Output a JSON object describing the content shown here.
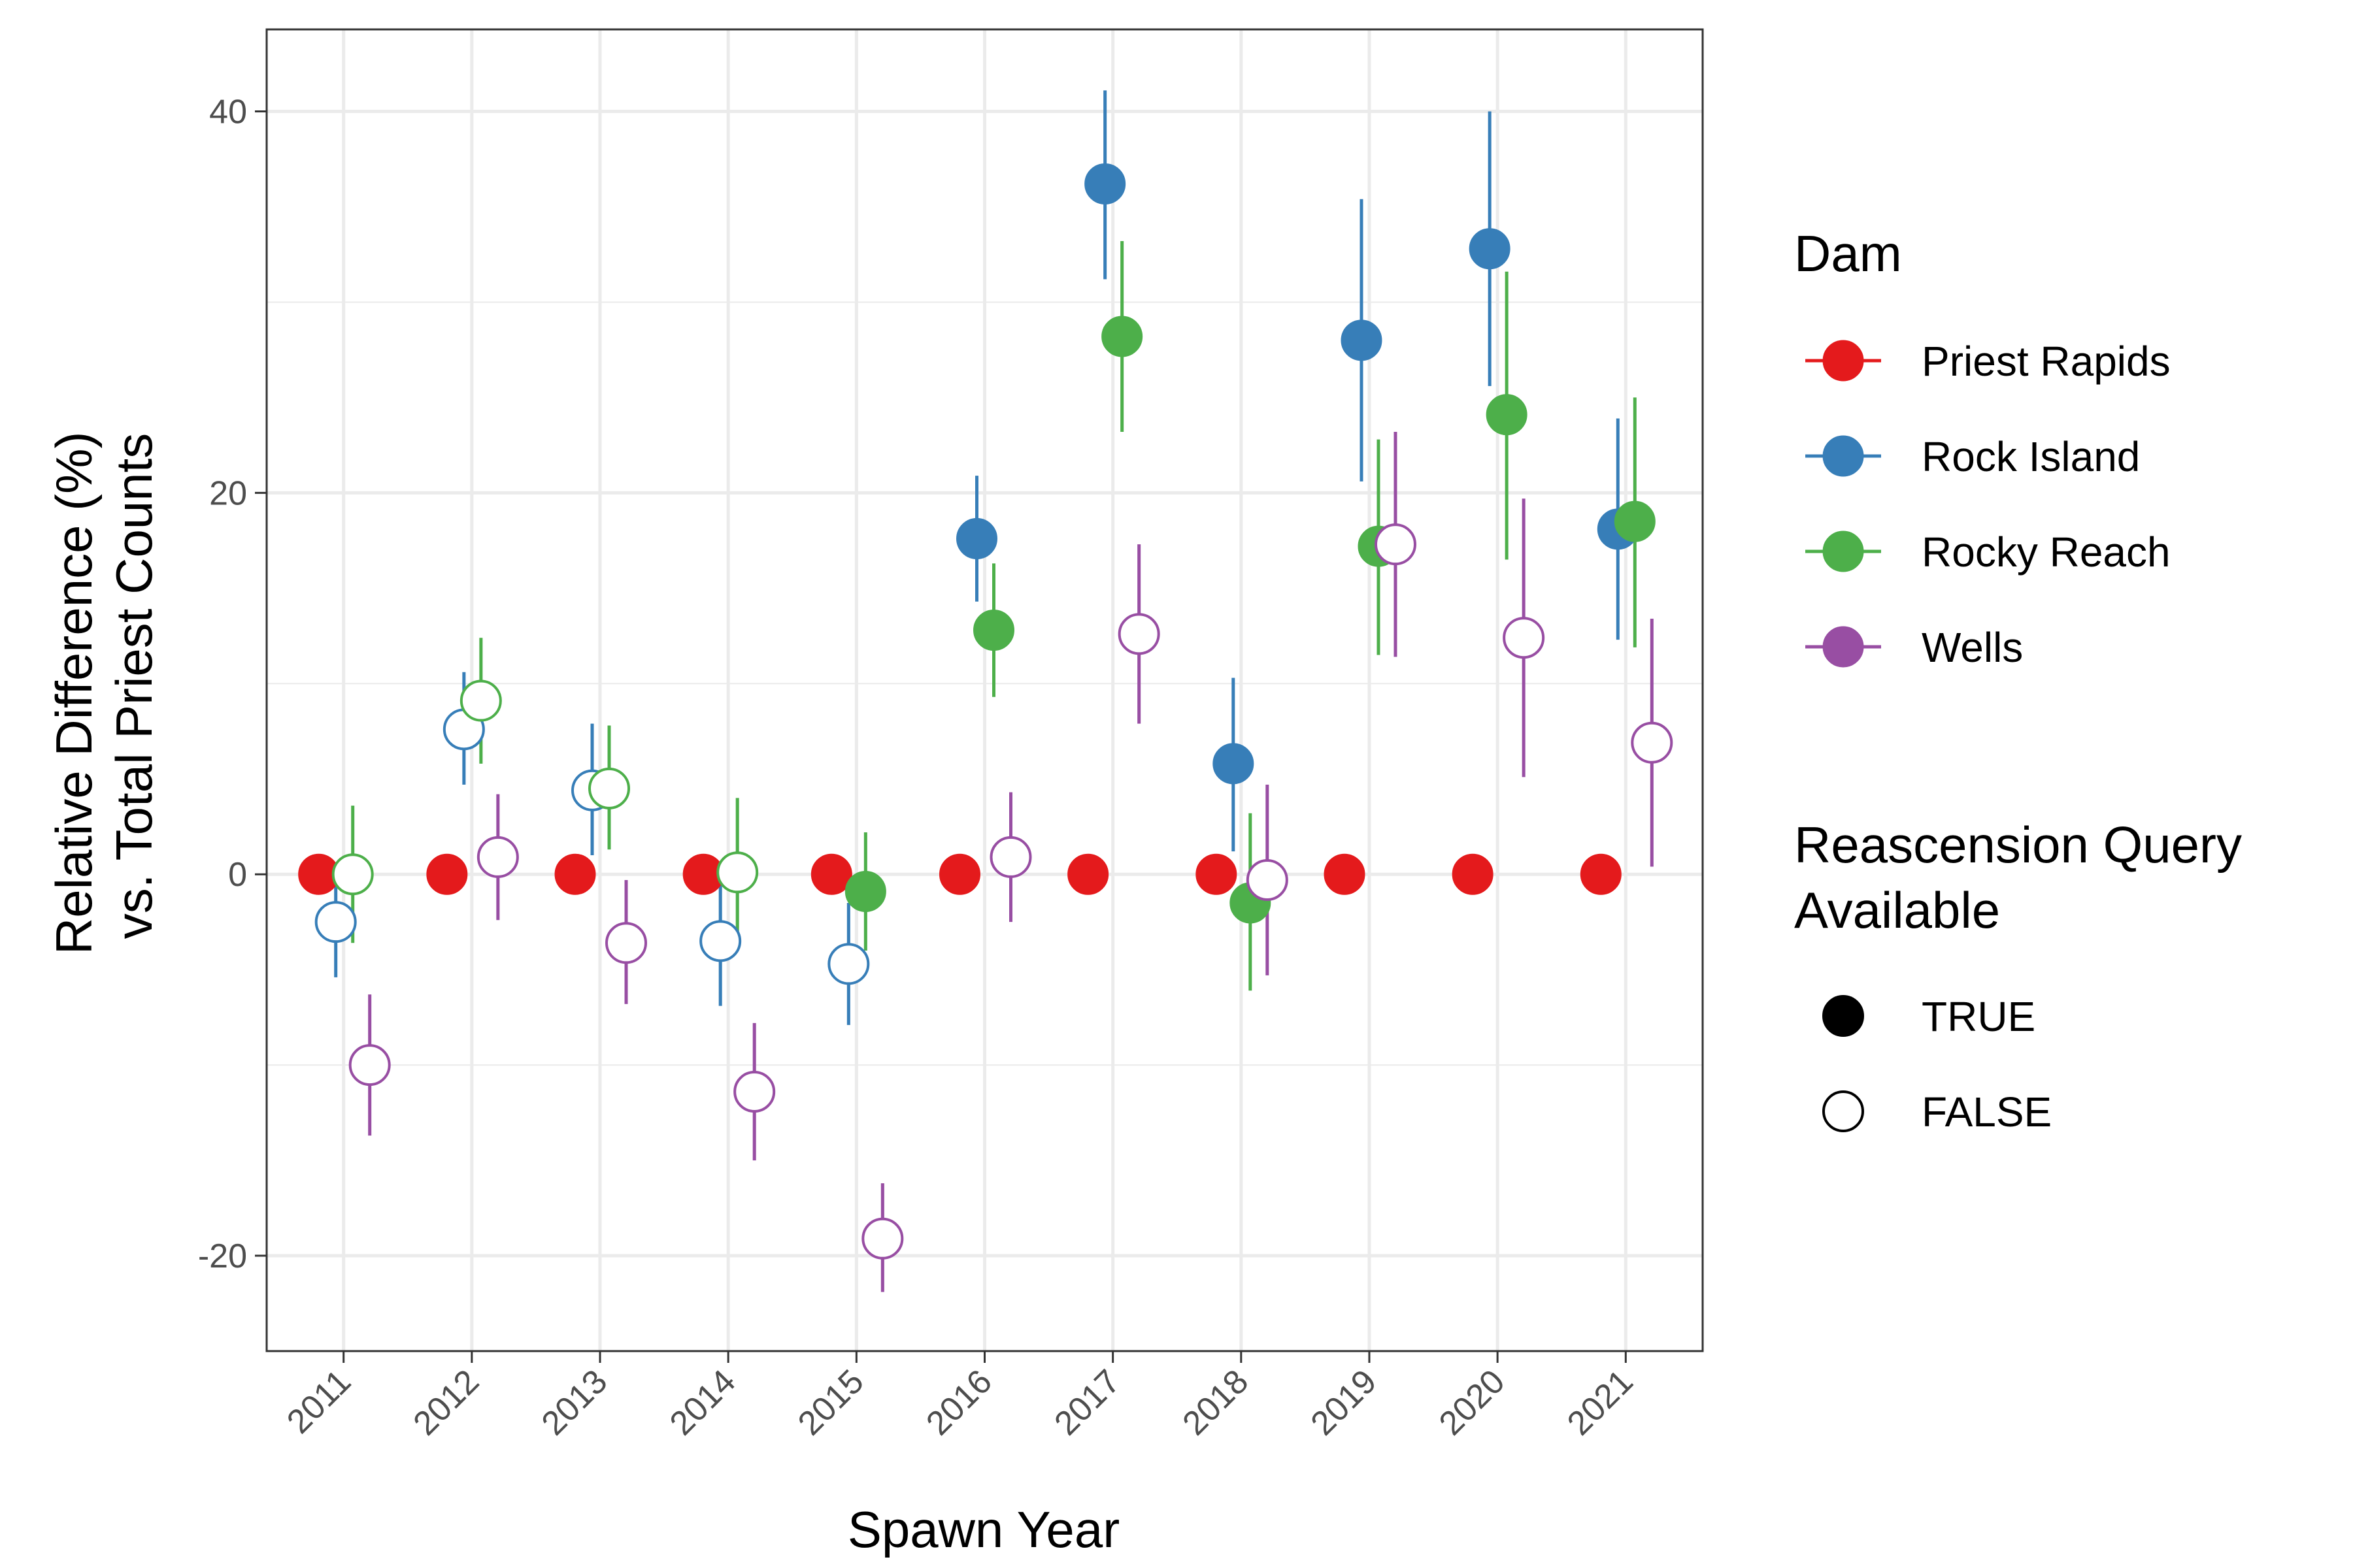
{
  "chart_data": {
    "type": "scatter",
    "xlabel": "Spawn Year",
    "ylabel_line1": "Relative Difference (%)",
    "ylabel_line2": "vs. Total Priest Counts",
    "x": [
      "2011",
      "2012",
      "2013",
      "2014",
      "2015",
      "2016",
      "2017",
      "2018",
      "2019",
      "2020",
      "2021"
    ],
    "yticks": [
      -20,
      0,
      20,
      40
    ],
    "yticks_text": [
      "-20",
      "0",
      "20",
      "40"
    ],
    "ylim": [
      -25,
      44.3
    ],
    "grid": true,
    "legend_position": "right",
    "legend_dam_title": "Dam",
    "legend_query_title_line1": "Reascension Query",
    "legend_query_title_line2": "Available",
    "query_levels": [
      {
        "label": "TRUE",
        "filled": true
      },
      {
        "label": "FALSE",
        "filled": false
      }
    ],
    "series": [
      {
        "name": "Priest Rapids",
        "color": "#E41A1C",
        "points": [
          {
            "x": "2011",
            "y": 0,
            "lo": 0,
            "hi": 0,
            "query": true
          },
          {
            "x": "2012",
            "y": 0,
            "lo": 0,
            "hi": 0,
            "query": true
          },
          {
            "x": "2013",
            "y": 0,
            "lo": 0,
            "hi": 0,
            "query": true
          },
          {
            "x": "2014",
            "y": 0,
            "lo": 0,
            "hi": 0,
            "query": true
          },
          {
            "x": "2015",
            "y": 0,
            "lo": 0,
            "hi": 0,
            "query": true
          },
          {
            "x": "2016",
            "y": 0,
            "lo": 0,
            "hi": 0,
            "query": true
          },
          {
            "x": "2017",
            "y": 0,
            "lo": 0,
            "hi": 0,
            "query": true
          },
          {
            "x": "2018",
            "y": 0,
            "lo": 0,
            "hi": 0,
            "query": true
          },
          {
            "x": "2019",
            "y": 0,
            "lo": 0,
            "hi": 0,
            "query": true
          },
          {
            "x": "2020",
            "y": 0,
            "lo": 0,
            "hi": 0,
            "query": true
          },
          {
            "x": "2021",
            "y": 0,
            "lo": 0,
            "hi": 0,
            "query": true
          }
        ]
      },
      {
        "name": "Rock Island",
        "color": "#377EB8",
        "points": [
          {
            "x": "2011",
            "y": -2.5,
            "lo": -5.4,
            "hi": 0.5,
            "query": false
          },
          {
            "x": "2012",
            "y": 7.6,
            "lo": 4.7,
            "hi": 10.6,
            "query": false
          },
          {
            "x": "2013",
            "y": 4.4,
            "lo": 1.0,
            "hi": 7.9,
            "query": false
          },
          {
            "x": "2014",
            "y": -3.5,
            "lo": -6.9,
            "hi": -0.1,
            "query": false
          },
          {
            "x": "2015",
            "y": -4.7,
            "lo": -7.9,
            "hi": -1.5,
            "query": false
          },
          {
            "x": "2016",
            "y": 17.6,
            "lo": 14.3,
            "hi": 20.9,
            "query": true
          },
          {
            "x": "2017",
            "y": 36.2,
            "lo": 31.2,
            "hi": 41.1,
            "query": true
          },
          {
            "x": "2018",
            "y": 5.8,
            "lo": 1.2,
            "hi": 10.3,
            "query": true
          },
          {
            "x": "2019",
            "y": 28.0,
            "lo": 20.6,
            "hi": 35.4,
            "query": true
          },
          {
            "x": "2020",
            "y": 32.8,
            "lo": 25.6,
            "hi": 40.0,
            "query": true
          },
          {
            "x": "2021",
            "y": 18.1,
            "lo": 12.3,
            "hi": 23.9,
            "query": true
          }
        ]
      },
      {
        "name": "Rocky Reach",
        "color": "#4DAF4A",
        "points": [
          {
            "x": "2011",
            "y": 0.0,
            "lo": -3.6,
            "hi": 3.6,
            "query": false
          },
          {
            "x": "2012",
            "y": 9.1,
            "lo": 5.8,
            "hi": 12.4,
            "query": false
          },
          {
            "x": "2013",
            "y": 4.5,
            "lo": 1.3,
            "hi": 7.8,
            "query": false
          },
          {
            "x": "2014",
            "y": 0.1,
            "lo": -3.8,
            "hi": 4.0,
            "query": false
          },
          {
            "x": "2015",
            "y": -0.9,
            "lo": -4.0,
            "hi": 2.2,
            "query": true
          },
          {
            "x": "2016",
            "y": 12.8,
            "lo": 9.3,
            "hi": 16.3,
            "query": true
          },
          {
            "x": "2017",
            "y": 28.2,
            "lo": 23.2,
            "hi": 33.2,
            "query": true
          },
          {
            "x": "2018",
            "y": -1.5,
            "lo": -6.1,
            "hi": 3.2,
            "query": true
          },
          {
            "x": "2019",
            "y": 17.2,
            "lo": 11.5,
            "hi": 22.8,
            "query": true
          },
          {
            "x": "2020",
            "y": 24.1,
            "lo": 16.5,
            "hi": 31.6,
            "query": true
          },
          {
            "x": "2021",
            "y": 18.5,
            "lo": 11.9,
            "hi": 25.0,
            "query": true
          }
        ]
      },
      {
        "name": "Wells",
        "color": "#984EA3",
        "points": [
          {
            "x": "2011",
            "y": -10.0,
            "lo": -13.7,
            "hi": -6.3,
            "query": false
          },
          {
            "x": "2012",
            "y": 0.9,
            "lo": -2.4,
            "hi": 4.2,
            "query": false
          },
          {
            "x": "2013",
            "y": -3.6,
            "lo": -6.8,
            "hi": -0.3,
            "query": false
          },
          {
            "x": "2014",
            "y": -11.4,
            "lo": -15.0,
            "hi": -7.8,
            "query": false
          },
          {
            "x": "2015",
            "y": -19.1,
            "lo": -21.9,
            "hi": -16.2,
            "query": false
          },
          {
            "x": "2016",
            "y": 0.9,
            "lo": -2.5,
            "hi": 4.3,
            "query": false
          },
          {
            "x": "2017",
            "y": 12.6,
            "lo": 7.9,
            "hi": 17.3,
            "query": false
          },
          {
            "x": "2018",
            "y": -0.3,
            "lo": -5.3,
            "hi": 4.7,
            "query": false
          },
          {
            "x": "2019",
            "y": 17.3,
            "lo": 11.4,
            "hi": 23.2,
            "query": false
          },
          {
            "x": "2020",
            "y": 12.4,
            "lo": 5.1,
            "hi": 19.7,
            "query": false
          },
          {
            "x": "2021",
            "y": 6.9,
            "lo": 0.4,
            "hi": 13.4,
            "query": false
          }
        ]
      }
    ]
  }
}
